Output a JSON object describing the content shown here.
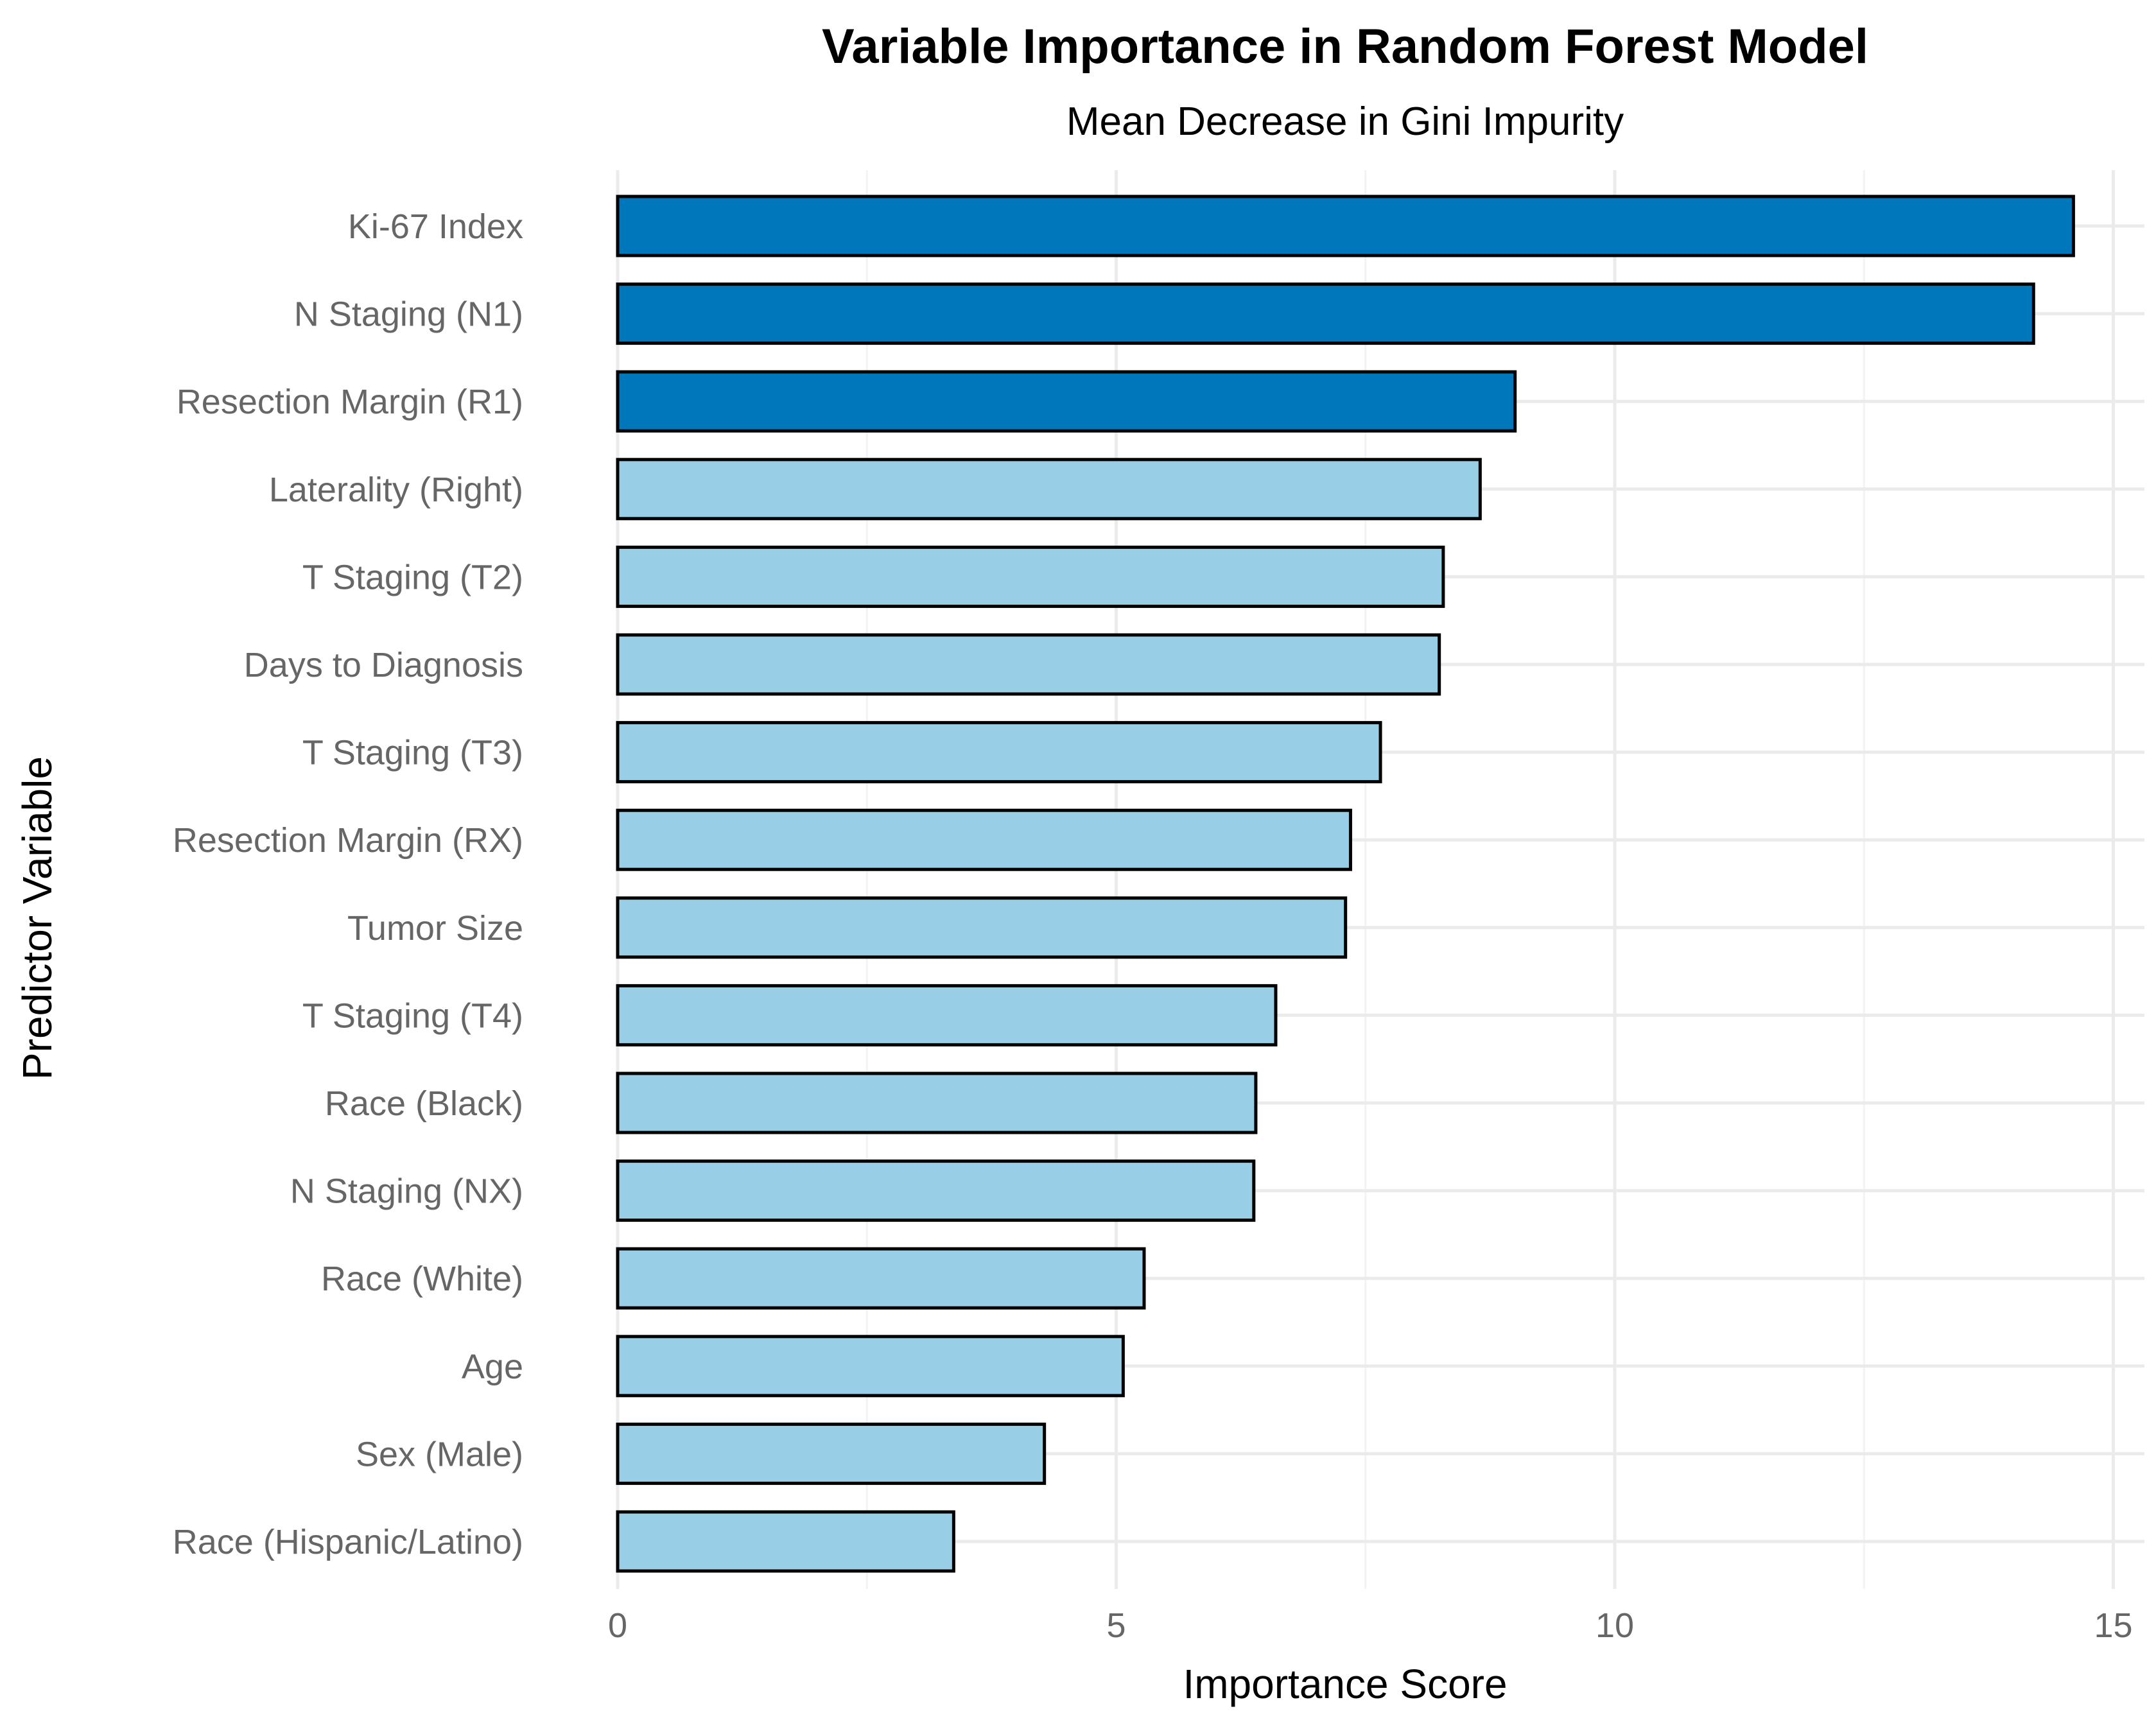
{
  "chart_data": {
    "type": "bar",
    "orientation": "horizontal",
    "title": "Variable Importance in Random Forest Model",
    "subtitle": "Mean Decrease in Gini Impurity",
    "xlabel": "Importance Score",
    "ylabel": "Predictor Variable",
    "xlim": [
      0,
      15
    ],
    "x_ticks": [
      0,
      5,
      10,
      15
    ],
    "grid": true,
    "legend": "none",
    "colors": {
      "highlight": "#0077bb",
      "default": "#99cfe6",
      "outline": "#000000"
    },
    "categories": [
      "Ki-67 Index",
      "N Staging (N1)",
      "Resection Margin (R1)",
      "Laterality (Right)",
      "T Staging (T2)",
      "Days to Diagnosis",
      "T Staging (T3)",
      "Resection Margin (RX)",
      "Tumor Size",
      "T Staging (T4)",
      "Race (Black)",
      "N Staging (NX)",
      "Race (White)",
      "Age",
      "Sex (Male)",
      "Race (Hispanic/Latino)"
    ],
    "values": [
      14.6,
      14.2,
      9.0,
      8.65,
      8.28,
      8.24,
      7.65,
      7.35,
      7.3,
      6.6,
      6.4,
      6.38,
      5.28,
      5.07,
      4.28,
      3.37
    ],
    "highlighted": [
      true,
      true,
      true,
      false,
      false,
      false,
      false,
      false,
      false,
      false,
      false,
      false,
      false,
      false,
      false,
      false
    ]
  }
}
